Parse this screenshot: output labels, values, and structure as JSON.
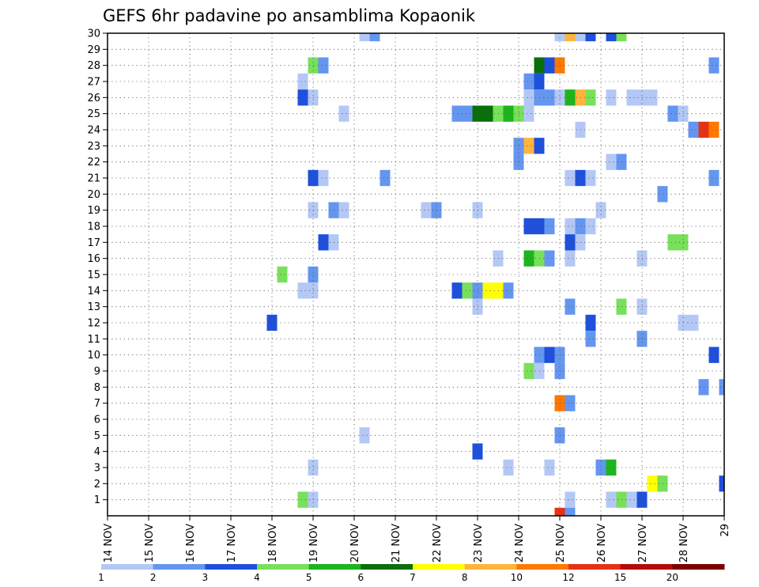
{
  "chart_data": {
    "type": "heatmap",
    "title": "GEFS 6hr padavine po ansamblima Kopaonik",
    "xlabel": "",
    "ylabel": "",
    "x_tick_labels": [
      "14 NOV",
      "15 NOV",
      "16 NOV",
      "17 NOV",
      "18 NOV",
      "19 NOV",
      "20 NOV",
      "21 NOV",
      "22 NOV",
      "23 NOV",
      "24 NOV",
      "25 NOV",
      "26 NOV",
      "27 NOV",
      "28 NOV",
      "29"
    ],
    "x_unit": "6-hour step from 14 NOV 00z",
    "xlim": [
      0,
      60
    ],
    "y_tick_labels": [
      "1",
      "2",
      "3",
      "4",
      "5",
      "6",
      "7",
      "8",
      "9",
      "10",
      "11",
      "12",
      "13",
      "14",
      "15",
      "16",
      "17",
      "18",
      "19",
      "20",
      "21",
      "22",
      "23",
      "24",
      "25",
      "26",
      "27",
      "28",
      "29",
      "30"
    ],
    "ylim": [
      0,
      30
    ],
    "grid": true,
    "legend_position": "bottom",
    "legend_labels": [
      "1",
      "2",
      "3",
      "4",
      "5",
      "6",
      "7",
      "8",
      "10",
      "12",
      "15",
      "20"
    ],
    "colors": [
      "#b4c8f5",
      "#6496f0",
      "#1e50dc",
      "#78e05a",
      "#1eb41e",
      "#0a6e0a",
      "#ffff00",
      "#ffb43c",
      "#ff7800",
      "#e63214",
      "#b40a0a",
      "#7d0000"
    ],
    "cells": [
      {
        "member": 30,
        "step": 25,
        "level": 1
      },
      {
        "member": 30,
        "step": 26,
        "level": 2
      },
      {
        "member": 30,
        "step": 44,
        "level": 1
      },
      {
        "member": 30,
        "step": 45,
        "level": 8
      },
      {
        "member": 30,
        "step": 46,
        "level": 1
      },
      {
        "member": 30,
        "step": 47,
        "level": 3
      },
      {
        "member": 30,
        "step": 49,
        "level": 3
      },
      {
        "member": 30,
        "step": 50,
        "level": 4
      },
      {
        "member": 28,
        "step": 20,
        "level": 4
      },
      {
        "member": 28,
        "step": 21,
        "level": 2
      },
      {
        "member": 28,
        "step": 42,
        "level": 6
      },
      {
        "member": 28,
        "step": 43,
        "level": 3
      },
      {
        "member": 28,
        "step": 44,
        "level": 9
      },
      {
        "member": 28,
        "step": 59,
        "level": 2
      },
      {
        "member": 27,
        "step": 19,
        "level": 1
      },
      {
        "member": 27,
        "step": 41,
        "level": 2
      },
      {
        "member": 27,
        "step": 42,
        "level": 3
      },
      {
        "member": 26,
        "step": 19,
        "level": 3
      },
      {
        "member": 26,
        "step": 20,
        "level": 1
      },
      {
        "member": 26,
        "step": 41,
        "level": 1
      },
      {
        "member": 26,
        "step": 42,
        "level": 2
      },
      {
        "member": 26,
        "step": 43,
        "level": 2
      },
      {
        "member": 26,
        "step": 44,
        "level": 1
      },
      {
        "member": 26,
        "step": 45,
        "level": 5
      },
      {
        "member": 26,
        "step": 46,
        "level": 8
      },
      {
        "member": 26,
        "step": 47,
        "level": 4
      },
      {
        "member": 26,
        "step": 49,
        "level": 1
      },
      {
        "member": 26,
        "step": 51,
        "level": 1
      },
      {
        "member": 26,
        "step": 52,
        "level": 1
      },
      {
        "member": 26,
        "step": 53,
        "level": 1
      },
      {
        "member": 25,
        "step": 23,
        "level": 1
      },
      {
        "member": 25,
        "step": 34,
        "level": 2
      },
      {
        "member": 25,
        "step": 35,
        "level": 2
      },
      {
        "member": 25,
        "step": 36,
        "level": 6
      },
      {
        "member": 25,
        "step": 37,
        "level": 6
      },
      {
        "member": 25,
        "step": 38,
        "level": 4
      },
      {
        "member": 25,
        "step": 39,
        "level": 5
      },
      {
        "member": 25,
        "step": 40,
        "level": 4
      },
      {
        "member": 25,
        "step": 41,
        "level": 1
      },
      {
        "member": 25,
        "step": 55,
        "level": 2
      },
      {
        "member": 25,
        "step": 56,
        "level": 1
      },
      {
        "member": 24,
        "step": 46,
        "level": 1
      },
      {
        "member": 24,
        "step": 57,
        "level": 2
      },
      {
        "member": 24,
        "step": 58,
        "level": 10
      },
      {
        "member": 24,
        "step": 59,
        "level": 9
      },
      {
        "member": 23,
        "step": 40,
        "level": 2
      },
      {
        "member": 23,
        "step": 41,
        "level": 8
      },
      {
        "member": 23,
        "step": 42,
        "level": 3
      },
      {
        "member": 22,
        "step": 40,
        "level": 2
      },
      {
        "member": 22,
        "step": 49,
        "level": 1
      },
      {
        "member": 22,
        "step": 50,
        "level": 2
      },
      {
        "member": 21,
        "step": 20,
        "level": 3
      },
      {
        "member": 21,
        "step": 21,
        "level": 1
      },
      {
        "member": 21,
        "step": 27,
        "level": 2
      },
      {
        "member": 21,
        "step": 45,
        "level": 1
      },
      {
        "member": 21,
        "step": 46,
        "level": 3
      },
      {
        "member": 21,
        "step": 47,
        "level": 1
      },
      {
        "member": 21,
        "step": 59,
        "level": 2
      },
      {
        "member": 20,
        "step": 54,
        "level": 2
      },
      {
        "member": 19,
        "step": 20,
        "level": 1
      },
      {
        "member": 19,
        "step": 22,
        "level": 2
      },
      {
        "member": 19,
        "step": 23,
        "level": 1
      },
      {
        "member": 19,
        "step": 31,
        "level": 1
      },
      {
        "member": 19,
        "step": 32,
        "level": 2
      },
      {
        "member": 19,
        "step": 36,
        "level": 1
      },
      {
        "member": 19,
        "step": 48,
        "level": 1
      },
      {
        "member": 18,
        "step": 41,
        "level": 3
      },
      {
        "member": 18,
        "step": 42,
        "level": 3
      },
      {
        "member": 18,
        "step": 43,
        "level": 2
      },
      {
        "member": 18,
        "step": 45,
        "level": 1
      },
      {
        "member": 18,
        "step": 46,
        "level": 2
      },
      {
        "member": 18,
        "step": 47,
        "level": 1
      },
      {
        "member": 17,
        "step": 21,
        "level": 3
      },
      {
        "member": 17,
        "step": 22,
        "level": 1
      },
      {
        "member": 17,
        "step": 45,
        "level": 3
      },
      {
        "member": 17,
        "step": 46,
        "level": 1
      },
      {
        "member": 17,
        "step": 55,
        "level": 4
      },
      {
        "member": 17,
        "step": 56,
        "level": 4
      },
      {
        "member": 16,
        "step": 38,
        "level": 1
      },
      {
        "member": 16,
        "step": 41,
        "level": 5
      },
      {
        "member": 16,
        "step": 42,
        "level": 4
      },
      {
        "member": 16,
        "step": 43,
        "level": 2
      },
      {
        "member": 16,
        "step": 45,
        "level": 1
      },
      {
        "member": 16,
        "step": 52,
        "level": 1
      },
      {
        "member": 15,
        "step": 17,
        "level": 4
      },
      {
        "member": 15,
        "step": 20,
        "level": 2
      },
      {
        "member": 14,
        "step": 19,
        "level": 1
      },
      {
        "member": 14,
        "step": 20,
        "level": 1
      },
      {
        "member": 14,
        "step": 34,
        "level": 3
      },
      {
        "member": 14,
        "step": 35,
        "level": 4
      },
      {
        "member": 14,
        "step": 36,
        "level": 2
      },
      {
        "member": 14,
        "step": 37,
        "level": 7
      },
      {
        "member": 14,
        "step": 38,
        "level": 7
      },
      {
        "member": 14,
        "step": 39,
        "level": 2
      },
      {
        "member": 13,
        "step": 36,
        "level": 1
      },
      {
        "member": 13,
        "step": 45,
        "level": 2
      },
      {
        "member": 13,
        "step": 50,
        "level": 4
      },
      {
        "member": 13,
        "step": 52,
        "level": 1
      },
      {
        "member": 12,
        "step": 16,
        "level": 3
      },
      {
        "member": 12,
        "step": 47,
        "level": 3
      },
      {
        "member": 12,
        "step": 56,
        "level": 1
      },
      {
        "member": 12,
        "step": 57,
        "level": 1
      },
      {
        "member": 11,
        "step": 47,
        "level": 2
      },
      {
        "member": 11,
        "step": 52,
        "level": 2
      },
      {
        "member": 10,
        "step": 42,
        "level": 2
      },
      {
        "member": 10,
        "step": 43,
        "level": 3
      },
      {
        "member": 10,
        "step": 44,
        "level": 2
      },
      {
        "member": 10,
        "step": 59,
        "level": 3
      },
      {
        "member": 9,
        "step": 41,
        "level": 4
      },
      {
        "member": 9,
        "step": 42,
        "level": 1
      },
      {
        "member": 9,
        "step": 44,
        "level": 2
      },
      {
        "member": 8,
        "step": 58,
        "level": 2
      },
      {
        "member": 8,
        "step": 60,
        "level": 2
      },
      {
        "member": 7,
        "step": 44,
        "level": 9
      },
      {
        "member": 7,
        "step": 45,
        "level": 2
      },
      {
        "member": 5,
        "step": 25,
        "level": 1
      },
      {
        "member": 5,
        "step": 44,
        "level": 2
      },
      {
        "member": 4,
        "step": 36,
        "level": 3
      },
      {
        "member": 3,
        "step": 20,
        "level": 1
      },
      {
        "member": 3,
        "step": 39,
        "level": 1
      },
      {
        "member": 3,
        "step": 43,
        "level": 1
      },
      {
        "member": 3,
        "step": 48,
        "level": 2
      },
      {
        "member": 3,
        "step": 49,
        "level": 5
      },
      {
        "member": 2,
        "step": 53,
        "level": 7
      },
      {
        "member": 2,
        "step": 54,
        "level": 4
      },
      {
        "member": 2,
        "step": 60,
        "level": 3
      },
      {
        "member": 1,
        "step": 19,
        "level": 4
      },
      {
        "member": 1,
        "step": 20,
        "level": 1
      },
      {
        "member": 1,
        "step": 45,
        "level": 1
      },
      {
        "member": 1,
        "step": 49,
        "level": 1
      },
      {
        "member": 1,
        "step": 50,
        "level": 4
      },
      {
        "member": 1,
        "step": 51,
        "level": 1
      },
      {
        "member": 1,
        "step": 52,
        "level": 3
      },
      {
        "member": 0,
        "step": 44,
        "level": 10
      },
      {
        "member": 0,
        "step": 45,
        "level": 2
      }
    ]
  }
}
